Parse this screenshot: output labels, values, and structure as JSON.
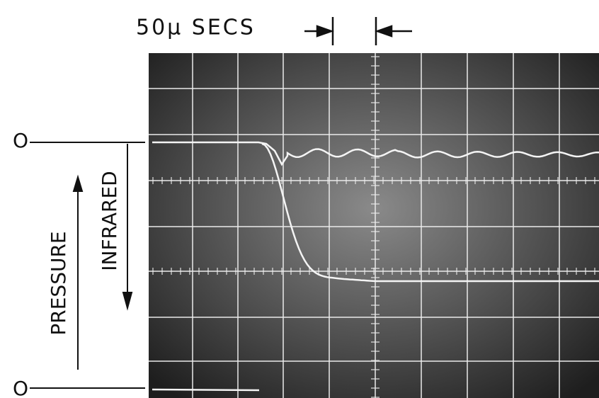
{
  "header": {
    "title": "50μ SECS"
  },
  "labels": {
    "top_zero": "O",
    "bottom_zero": "O",
    "pressure": "PRESSURE",
    "infrared": "INFRARED"
  }
}
